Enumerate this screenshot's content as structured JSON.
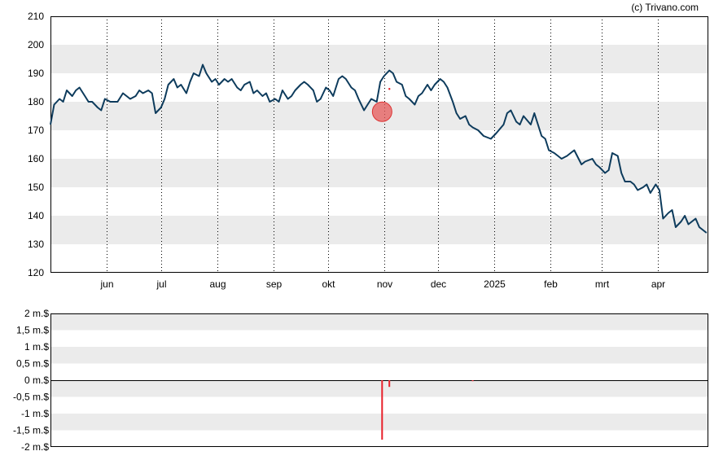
{
  "copyright": "(c) Trivano.com",
  "colors": {
    "price_line": "#0d3b5c",
    "band": "#ebebeb",
    "grid_dotted": "#000000",
    "insider_bar": "#e8202a",
    "marker_fill": "#e55a5a"
  },
  "chart_data": [
    {
      "type": "line",
      "title": "",
      "xlabel": "",
      "ylabel": "",
      "ylim": [
        120,
        210
      ],
      "y_ticks": [
        "120",
        "130",
        "140",
        "150",
        "160",
        "170",
        "180",
        "190",
        "200",
        "210"
      ],
      "x_ticks": [
        "jun",
        "jul",
        "aug",
        "sep",
        "okt",
        "nov",
        "dec",
        "2025",
        "feb",
        "mrt",
        "apr"
      ],
      "x_start": "2024-05-01",
      "x_end": "2025-04-29",
      "grid": "alternating horizontal bands, dotted vertical lines at month starts",
      "series": [
        {
          "name": "",
          "dates": [
            "2024-05-01",
            "2024-05-03",
            "2024-05-06",
            "2024-05-08",
            "2024-05-10",
            "2024-05-13",
            "2024-05-15",
            "2024-05-17",
            "2024-05-20",
            "2024-05-22",
            "2024-05-24",
            "2024-05-27",
            "2024-05-29",
            "2024-05-31",
            "2024-06-03",
            "2024-06-05",
            "2024-06-07",
            "2024-06-10",
            "2024-06-12",
            "2024-06-14",
            "2024-06-17",
            "2024-06-19",
            "2024-06-21",
            "2024-06-24",
            "2024-06-26",
            "2024-06-28",
            "2024-07-01",
            "2024-07-03",
            "2024-07-05",
            "2024-07-08",
            "2024-07-10",
            "2024-07-12",
            "2024-07-15",
            "2024-07-17",
            "2024-07-19",
            "2024-07-22",
            "2024-07-24",
            "2024-07-26",
            "2024-07-29",
            "2024-07-31",
            "2024-08-02",
            "2024-08-05",
            "2024-08-07",
            "2024-08-09",
            "2024-08-12",
            "2024-08-14",
            "2024-08-16",
            "2024-08-19",
            "2024-08-21",
            "2024-08-23",
            "2024-08-26",
            "2024-08-28",
            "2024-08-30",
            "2024-09-02",
            "2024-09-04",
            "2024-09-06",
            "2024-09-09",
            "2024-09-11",
            "2024-09-13",
            "2024-09-16",
            "2024-09-18",
            "2024-09-20",
            "2024-09-23",
            "2024-09-25",
            "2024-09-27",
            "2024-09-30",
            "2024-10-02",
            "2024-10-04",
            "2024-10-07",
            "2024-10-09",
            "2024-10-11",
            "2024-10-14",
            "2024-10-16",
            "2024-10-18",
            "2024-10-21",
            "2024-10-23",
            "2024-10-25",
            "2024-10-28",
            "2024-10-30",
            "2024-11-01",
            "2024-11-04",
            "2024-11-06",
            "2024-11-08",
            "2024-11-11",
            "2024-11-13",
            "2024-11-15",
            "2024-11-18",
            "2024-11-20",
            "2024-11-22",
            "2024-11-25",
            "2024-11-27",
            "2024-11-29",
            "2024-12-02",
            "2024-12-04",
            "2024-12-06",
            "2024-12-09",
            "2024-12-11",
            "2024-12-13",
            "2024-12-16",
            "2024-12-18",
            "2024-12-20",
            "2024-12-23",
            "2024-12-26",
            "2024-12-30",
            "2025-01-02",
            "2025-01-06",
            "2025-01-08",
            "2025-01-10",
            "2025-01-13",
            "2025-01-15",
            "2025-01-17",
            "2025-01-21",
            "2025-01-23",
            "2025-01-27",
            "2025-01-29",
            "2025-01-31",
            "2025-02-03",
            "2025-02-05",
            "2025-02-07",
            "2025-02-10",
            "2025-02-12",
            "2025-02-14",
            "2025-02-18",
            "2025-02-20",
            "2025-02-24",
            "2025-02-26",
            "2025-02-28",
            "2025-03-03",
            "2025-03-05",
            "2025-03-07",
            "2025-03-10",
            "2025-03-12",
            "2025-03-14",
            "2025-03-17",
            "2025-03-19",
            "2025-03-21",
            "2025-03-24",
            "2025-03-26",
            "2025-03-28",
            "2025-03-31",
            "2025-04-02",
            "2025-04-04",
            "2025-04-07",
            "2025-04-09",
            "2025-04-11",
            "2025-04-14",
            "2025-04-16",
            "2025-04-18",
            "2025-04-22",
            "2025-04-24",
            "2025-04-28"
          ],
          "values": [
            172,
            179,
            181,
            180,
            184,
            182,
            184,
            185,
            182,
            180,
            180,
            178,
            177,
            181,
            180,
            180,
            180,
            183,
            182,
            181,
            182,
            184,
            183,
            184,
            183,
            176,
            178,
            181,
            186,
            188,
            185,
            186,
            183,
            187,
            190,
            189,
            193,
            190,
            187,
            188,
            186,
            188,
            187,
            188,
            185,
            184,
            186,
            187,
            183,
            184,
            182,
            183,
            180,
            181,
            180,
            184,
            181,
            182,
            184,
            186,
            187,
            186,
            184,
            180,
            181,
            185,
            184,
            182,
            188,
            189,
            188,
            185,
            184,
            181,
            177,
            179,
            181,
            180,
            187,
            189,
            191,
            190,
            187,
            186,
            182,
            181,
            179,
            182,
            183,
            186,
            184,
            186,
            188,
            187,
            185,
            180,
            176,
            174,
            175,
            172,
            171,
            170,
            168,
            167,
            169,
            172,
            176,
            177,
            173,
            172,
            175,
            172,
            176,
            168,
            167,
            163,
            162,
            161,
            160,
            161,
            162,
            163,
            158,
            159,
            160,
            158,
            157,
            155,
            156,
            162,
            161,
            155,
            152,
            152,
            151,
            149,
            150,
            151,
            148,
            151,
            149,
            139,
            141,
            142,
            136,
            138,
            140,
            137,
            139,
            136,
            134
          ]
        }
      ],
      "markers": [
        {
          "date": "2024-10-31",
          "value": 176.5
        }
      ]
    },
    {
      "type": "bar",
      "title": "",
      "xlabel": "",
      "ylabel": "",
      "ylim": [
        -2000000,
        2000000
      ],
      "y_ticks": [
        "2 m.$",
        "1,5 m.$",
        "1 m.$",
        "0,5 m.$",
        "0 m.$",
        "-0,5 m.$",
        "-1 m.$",
        "-1,5 m.$",
        "-2 m.$"
      ],
      "grid": "alternating horizontal bands",
      "bars": [
        {
          "date": "2024-10-31",
          "value": -1780000
        },
        {
          "date": "2024-11-04",
          "value": -200000
        },
        {
          "date": "2024-12-20",
          "value": -30000
        }
      ]
    }
  ]
}
